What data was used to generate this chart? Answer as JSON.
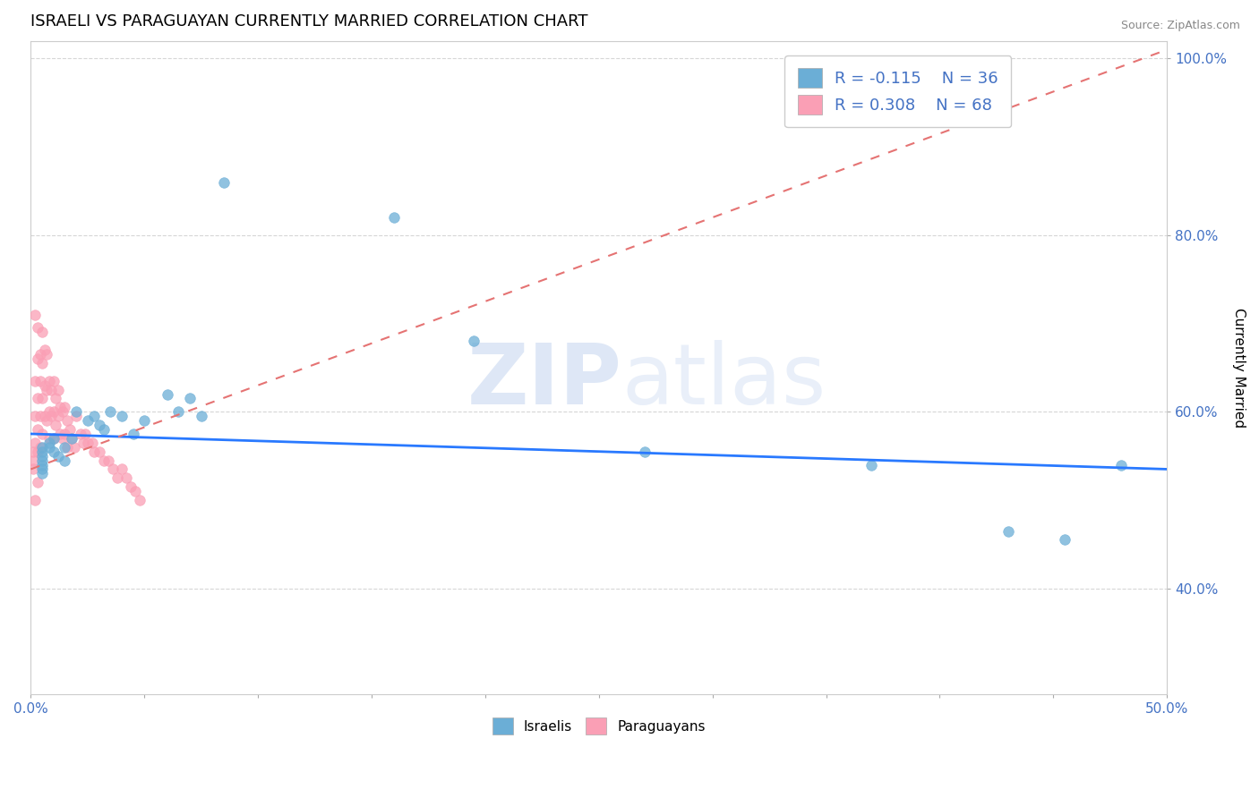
{
  "title": "ISRAELI VS PARAGUAYAN CURRENTLY MARRIED CORRELATION CHART",
  "source_text": "Source: ZipAtlas.com",
  "ylabel": "Currently Married",
  "xlim": [
    0.0,
    0.5
  ],
  "ylim": [
    0.28,
    1.02
  ],
  "xticks": [
    0.0,
    0.05,
    0.1,
    0.15,
    0.2,
    0.25,
    0.3,
    0.35,
    0.4,
    0.45,
    0.5
  ],
  "xticklabels": [
    "0.0%",
    "",
    "",
    "",
    "",
    "",
    "",
    "",
    "",
    "",
    "50.0%"
  ],
  "yticks": [
    0.4,
    0.6,
    0.8,
    1.0
  ],
  "yticklabels": [
    "40.0%",
    "60.0%",
    "80.0%",
    "100.0%"
  ],
  "israeli_color": "#6baed6",
  "israeli_edge": "#6baed6",
  "paraguayan_color": "#fa9fb5",
  "paraguayan_edge": "#fa9fb5",
  "israeli_x": [
    0.005,
    0.005,
    0.005,
    0.005,
    0.005,
    0.005,
    0.005,
    0.008,
    0.008,
    0.01,
    0.01,
    0.012,
    0.015,
    0.015,
    0.018,
    0.02,
    0.025,
    0.028,
    0.03,
    0.032,
    0.035,
    0.04,
    0.045,
    0.05,
    0.06,
    0.065,
    0.07,
    0.075,
    0.085,
    0.16,
    0.195,
    0.27,
    0.37,
    0.43,
    0.455,
    0.48
  ],
  "israeli_y": [
    0.56,
    0.555,
    0.55,
    0.545,
    0.54,
    0.535,
    0.53,
    0.565,
    0.56,
    0.57,
    0.555,
    0.55,
    0.56,
    0.545,
    0.57,
    0.6,
    0.59,
    0.595,
    0.585,
    0.58,
    0.6,
    0.595,
    0.575,
    0.59,
    0.62,
    0.6,
    0.615,
    0.595,
    0.86,
    0.82,
    0.68,
    0.555,
    0.54,
    0.465,
    0.455,
    0.54
  ],
  "paraguayan_x": [
    0.001,
    0.001,
    0.001,
    0.002,
    0.002,
    0.002,
    0.002,
    0.002,
    0.003,
    0.003,
    0.003,
    0.003,
    0.003,
    0.003,
    0.004,
    0.004,
    0.004,
    0.004,
    0.005,
    0.005,
    0.005,
    0.005,
    0.006,
    0.006,
    0.006,
    0.007,
    0.007,
    0.007,
    0.008,
    0.008,
    0.008,
    0.009,
    0.009,
    0.01,
    0.01,
    0.01,
    0.011,
    0.011,
    0.012,
    0.012,
    0.013,
    0.013,
    0.014,
    0.014,
    0.015,
    0.015,
    0.016,
    0.016,
    0.017,
    0.018,
    0.019,
    0.02,
    0.022,
    0.023,
    0.024,
    0.025,
    0.027,
    0.028,
    0.03,
    0.032,
    0.034,
    0.036,
    0.038,
    0.04,
    0.042,
    0.044,
    0.046,
    0.048
  ],
  "paraguayan_y": [
    0.555,
    0.545,
    0.535,
    0.71,
    0.635,
    0.595,
    0.565,
    0.5,
    0.695,
    0.66,
    0.615,
    0.58,
    0.555,
    0.52,
    0.665,
    0.635,
    0.595,
    0.56,
    0.69,
    0.655,
    0.615,
    0.575,
    0.67,
    0.63,
    0.595,
    0.665,
    0.625,
    0.59,
    0.635,
    0.6,
    0.57,
    0.625,
    0.595,
    0.635,
    0.6,
    0.57,
    0.615,
    0.585,
    0.625,
    0.595,
    0.605,
    0.575,
    0.6,
    0.57,
    0.605,
    0.575,
    0.59,
    0.56,
    0.58,
    0.57,
    0.56,
    0.595,
    0.575,
    0.565,
    0.575,
    0.565,
    0.565,
    0.555,
    0.555,
    0.545,
    0.545,
    0.535,
    0.525,
    0.535,
    0.525,
    0.515,
    0.51,
    0.5
  ],
  "isr_trend_x": [
    0.0,
    0.5
  ],
  "isr_trend_y": [
    0.575,
    0.535
  ],
  "para_trend_x": [
    0.0,
    0.5
  ],
  "para_trend_y": [
    0.535,
    1.01
  ],
  "legend_R_israeli": "R = -0.115",
  "legend_N_israeli": "N = 36",
  "legend_R_paraguayan": "R = 0.308",
  "legend_N_paraguayan": "N = 68",
  "watermark_zip": "ZIP",
  "watermark_atlas": "atlas",
  "background_color": "#ffffff",
  "grid_color": "#cccccc",
  "title_fontsize": 13,
  "axis_label_fontsize": 11,
  "tick_fontsize": 11,
  "legend_fontsize": 13,
  "source_fontsize": 9
}
